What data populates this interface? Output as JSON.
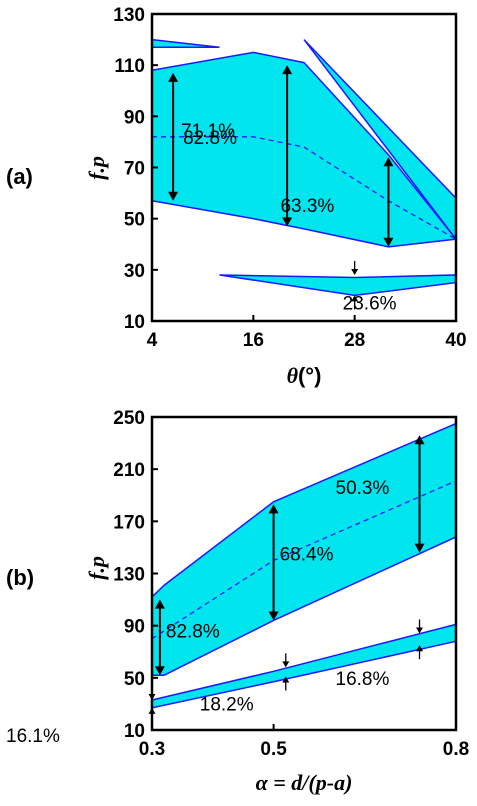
{
  "chart_data": [
    {
      "type": "area",
      "panel_label": "(a)",
      "xlabel_var": "θ",
      "xlabel_unit": "(°)",
      "ylabel": "f.p",
      "xlim": [
        4,
        40
      ],
      "ylim": [
        10,
        130
      ],
      "xticks": [
        4,
        16,
        28,
        40
      ],
      "yticks": [
        10,
        30,
        50,
        70,
        90,
        110,
        130
      ],
      "fill_color": "#00e5ee",
      "edge_color": "#1a1aff",
      "bands": [
        {
          "x": [
            4,
            16,
            22,
            32,
            40
          ],
          "upper": [
            108,
            115,
            111,
            75,
            42
          ],
          "lower": [
            57,
            50,
            46,
            39,
            42
          ]
        },
        {
          "x": [
            4,
            12
          ],
          "upper": [
            120,
            117
          ],
          "lower": [
            117,
            117
          ]
        },
        {
          "x": [
            22,
            40
          ],
          "upper": [
            120,
            58
          ],
          "lower": [
            120,
            42
          ]
        },
        {
          "x": [
            12,
            28,
            40
          ],
          "upper": [
            28,
            27,
            28
          ],
          "lower": [
            28,
            20,
            25
          ]
        }
      ],
      "center_line": {
        "x": [
          4,
          16,
          22,
          32,
          40
        ],
        "y": [
          82,
          82,
          78,
          57,
          42
        ]
      },
      "bandwidth_annotations": [
        {
          "label": "71.1%",
          "x": 6.5,
          "y_from": 57,
          "y_to": 107
        },
        {
          "label": "82.8%",
          "x": 20,
          "y_from": 47,
          "y_to": 110
        },
        {
          "label": "63.3%",
          "x": 32,
          "y_from": 39,
          "y_to": 74
        },
        {
          "label": "23.6%",
          "x": 28,
          "y_from": 20,
          "y_to": 28
        }
      ]
    },
    {
      "type": "area",
      "panel_label": "(b)",
      "xlabel": "α = d/(p-a)",
      "ylabel": "f.p",
      "xlim": [
        0.3,
        0.8
      ],
      "ylim": [
        10,
        250
      ],
      "xticks": [
        0.3,
        0.5,
        0.8
      ],
      "yticks": [
        10,
        50,
        90,
        130,
        170,
        210,
        250
      ],
      "fill_color": "#00e5ee",
      "edge_color": "#1a1aff",
      "bands": [
        {
          "x": [
            0.3,
            0.32,
            0.5,
            0.8
          ],
          "upper": [
            112,
            121,
            185,
            245
          ],
          "lower": [
            52,
            52,
            94,
            158
          ]
        },
        {
          "x": [
            0.3,
            0.5,
            0.8
          ],
          "upper": [
            33,
            55,
            91
          ],
          "lower": [
            27,
            47,
            78
          ]
        }
      ],
      "center_line": {
        "x": [
          0.3,
          0.5,
          0.8
        ],
        "y": [
          80,
          140,
          201
        ]
      },
      "bandwidth_annotations": [
        {
          "label": "82.8%",
          "x": 0.313,
          "y_from": 52,
          "y_to": 110
        },
        {
          "label": "68.4%",
          "x": 0.5,
          "y_from": 94,
          "y_to": 183
        },
        {
          "label": "50.3%",
          "x": 0.74,
          "y_from": 146,
          "y_to": 236
        },
        {
          "label": "16.1%",
          "x": 0.3,
          "y_from": 27,
          "y_to": 33
        },
        {
          "label": "18.2%",
          "x": 0.52,
          "y_from": 51,
          "y_to": 58
        },
        {
          "label": "16.8%",
          "x": 0.74,
          "y_from": 75,
          "y_to": 84
        }
      ]
    }
  ]
}
